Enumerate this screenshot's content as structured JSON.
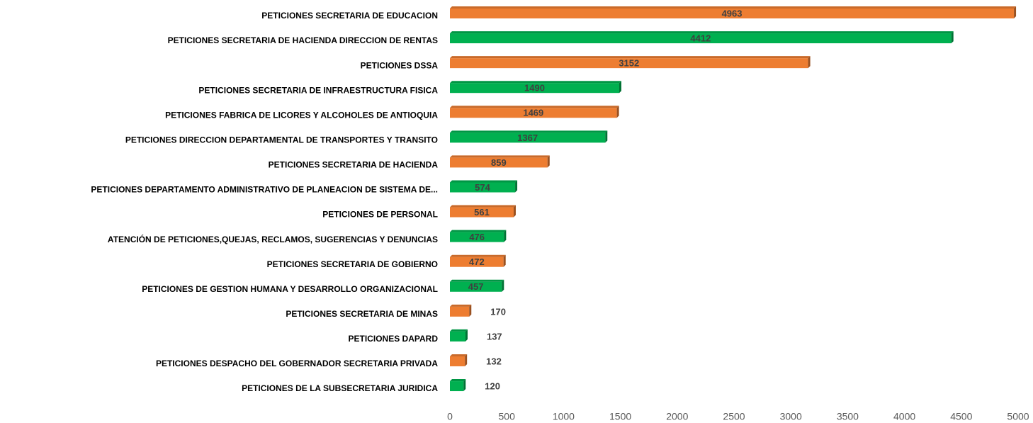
{
  "chart_data": {
    "type": "bar",
    "orientation": "horizontal",
    "categories": [
      "PETICIONES SECRETARIA DE EDUCACION",
      "PETICIONES SECRETARIA DE HACIENDA DIRECCION DE RENTAS",
      "PETICIONES DSSA",
      "PETICIONES SECRETARIA DE INFRAESTRUCTURA FISICA",
      "PETICIONES FABRICA DE LICORES Y ALCOHOLES DE ANTIOQUIA",
      "PETICIONES DIRECCION DEPARTAMENTAL DE TRANSPORTES Y TRANSITO",
      "PETICIONES SECRETARIA DE HACIENDA",
      "PETICIONES DEPARTAMENTO ADMINISTRATIVO DE PLANEACION DE SISTEMA DE...",
      "PETICIONES DE PERSONAL",
      "ATENCIÓN DE PETICIONES,QUEJAS, RECLAMOS, SUGERENCIAS Y DENUNCIAS",
      "PETICIONES SECRETARIA DE GOBIERNO",
      "PETICIONES DE GESTION HUMANA Y DESARROLLO ORGANIZACIONAL",
      "PETICIONES SECRETARIA DE MINAS",
      "PETICIONES DAPARD",
      "PETICIONES DESPACHO DEL GOBERNADOR SECRETARIA PRIVADA",
      "PETICIONES DE LA SUBSECRETARIA JURIDICA"
    ],
    "values": [
      4963,
      4412,
      3152,
      1490,
      1469,
      1367,
      859,
      574,
      561,
      476,
      472,
      457,
      170,
      137,
      132,
      120
    ],
    "colors": [
      "#ED7D31",
      "#00B050",
      "#ED7D31",
      "#00B050",
      "#ED7D31",
      "#00B050",
      "#ED7D31",
      "#00B050",
      "#ED7D31",
      "#00B050",
      "#ED7D31",
      "#00B050",
      "#ED7D31",
      "#00B050",
      "#ED7D31",
      "#00B050"
    ],
    "xlim": [
      0,
      5000
    ],
    "xticks": [
      0,
      500,
      1000,
      1500,
      2000,
      2500,
      3000,
      3500,
      4000,
      4500,
      5000
    ],
    "grid": false
  }
}
